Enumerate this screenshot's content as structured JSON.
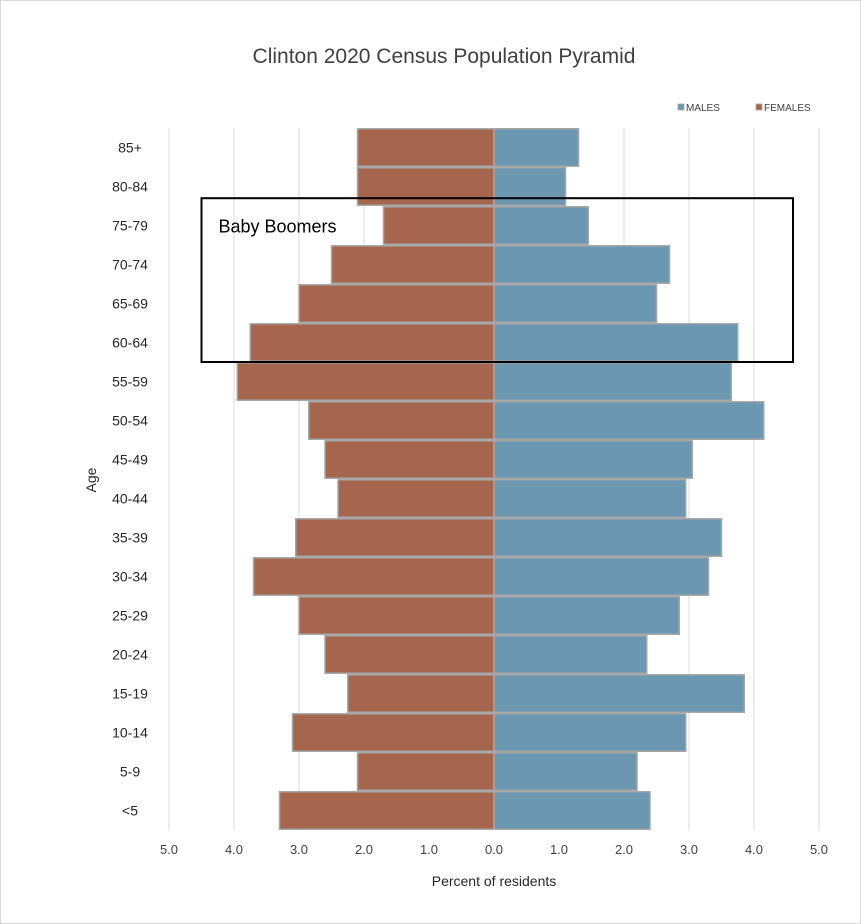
{
  "chart_data": {
    "type": "bar",
    "orientation": "horizontal",
    "title": "Clinton 2020 Census Population Pyramid",
    "xlabel": "Percent of residents",
    "ylabel": "Age",
    "xlim": [
      -5,
      5
    ],
    "x_ticks": [
      {
        "value": -5,
        "label": "5.0"
      },
      {
        "value": -4,
        "label": "4.0"
      },
      {
        "value": -3,
        "label": "3.0"
      },
      {
        "value": -2,
        "label": "2.0"
      },
      {
        "value": -1,
        "label": "1.0"
      },
      {
        "value": 0,
        "label": "0.0"
      },
      {
        "value": 1,
        "label": "1.0"
      },
      {
        "value": 2,
        "label": "2.0"
      },
      {
        "value": 3,
        "label": "3.0"
      },
      {
        "value": 4,
        "label": "4.0"
      },
      {
        "value": 5,
        "label": "5.0"
      }
    ],
    "grid": "vertical",
    "legend": {
      "placement": "top-right"
    },
    "categories": [
      "85+",
      "80-84",
      "75-79",
      "70-74",
      "65-69",
      "60-64",
      "55-59",
      "50-54",
      "45-49",
      "40-44",
      "35-39",
      "30-34",
      "25-29",
      "20-24",
      "15-19",
      "10-14",
      "5-9",
      "<5"
    ],
    "series": [
      {
        "name": "MALES",
        "color": "#6b97b1",
        "values": [
          1.3,
          1.1,
          1.45,
          2.7,
          2.5,
          3.75,
          3.65,
          4.15,
          3.05,
          2.95,
          3.5,
          3.3,
          2.85,
          2.35,
          3.85,
          2.95,
          2.2,
          2.4
        ]
      },
      {
        "name": "FEMALES",
        "color": "#a5664d",
        "values": [
          2.1,
          2.1,
          1.7,
          2.5,
          3.0,
          3.75,
          3.95,
          2.85,
          2.6,
          2.4,
          3.05,
          3.7,
          3.0,
          2.6,
          2.25,
          3.1,
          2.1,
          3.3
        ]
      }
    ],
    "annotations": [
      {
        "text": "Baby Boomers",
        "type": "box",
        "from_category": "75-79",
        "to_category": "60-64",
        "x_range": [
          -4.5,
          4.6
        ]
      }
    ]
  }
}
